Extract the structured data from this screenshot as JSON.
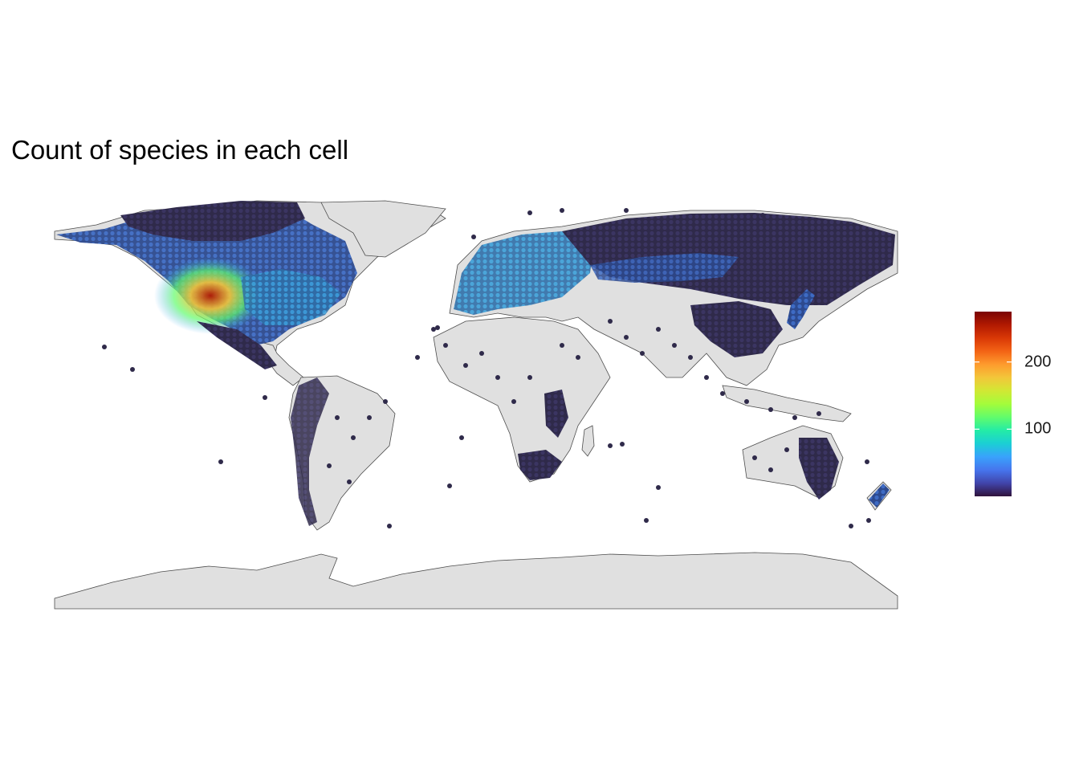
{
  "map": {
    "title": "Count of species in each cell",
    "land_color": "#e0e0e0",
    "border_color": "#4d4d4d",
    "background": "#ffffff",
    "projection": "equirectangular"
  },
  "legend": {
    "type": "continuous-colorbar",
    "ticks": [
      "100",
      "200"
    ],
    "tick_values": [
      100,
      200
    ],
    "range": [
      0,
      275
    ],
    "palette": [
      "#30123b",
      "#4145ab",
      "#4675ed",
      "#39a2fc",
      "#1bcfd4",
      "#24eca6",
      "#61fc6c",
      "#a4fc3b",
      "#d1e834",
      "#f3c63a",
      "#fe9b2d",
      "#f36315",
      "#d93806",
      "#b11901",
      "#7a0403"
    ]
  },
  "chart_data": {
    "type": "heatmap",
    "title": "Count of species in each cell",
    "value_label": "",
    "color_range": [
      0,
      275
    ],
    "colorbar_ticks": [
      100,
      200
    ],
    "hotspots": [
      {
        "lon": -110,
        "lat": 40,
        "value": 260
      },
      {
        "lon": -105,
        "lat": 45,
        "value": 230
      },
      {
        "lon": -118,
        "lat": 42,
        "value": 210
      },
      {
        "lon": -100,
        "lat": 40,
        "value": 180
      },
      {
        "lon": -120,
        "lat": 50,
        "value": 140
      },
      {
        "lon": -90,
        "lat": 40,
        "value": 110
      },
      {
        "lon": -80,
        "lat": 40,
        "value": 90
      },
      {
        "lon": 10,
        "lat": 50,
        "value": 80
      },
      {
        "lon": 30,
        "lat": 55,
        "value": 70
      },
      {
        "lon": 80,
        "lat": 55,
        "value": 50
      }
    ]
  }
}
